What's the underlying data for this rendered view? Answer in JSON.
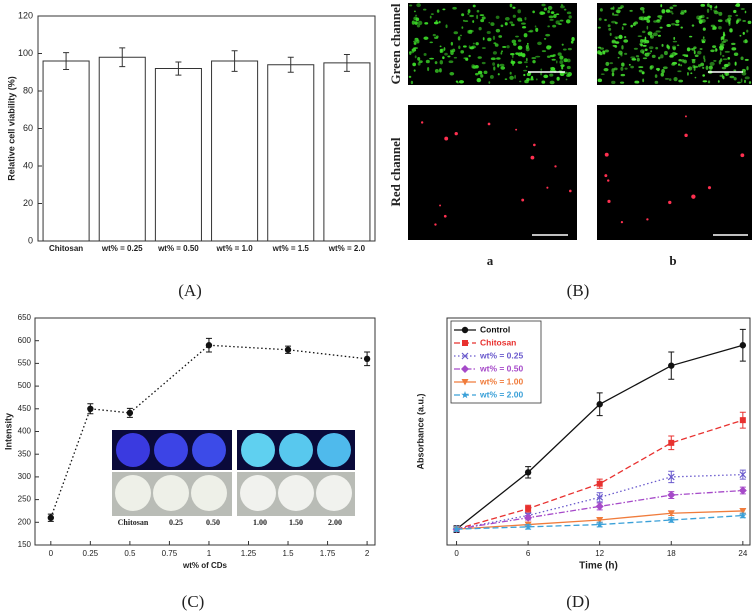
{
  "chart_data": [
    {
      "type": "bar",
      "panel_label": "(A)",
      "ylabel": "Relative cell viability (%)",
      "categories": [
        "Chitosan",
        "wt% = 0.25",
        "wt% = 0.50",
        "wt% = 1.0",
        "wt% = 1.5",
        "wt% = 2.0"
      ],
      "values": [
        96,
        98,
        92,
        96,
        94,
        95
      ],
      "errors": [
        4.5,
        5,
        3.5,
        5.5,
        4,
        4.5
      ],
      "color": "#ffffff",
      "ylim": [
        0,
        120
      ],
      "yticks": [
        0,
        20,
        40,
        60,
        80,
        100,
        120
      ]
    },
    {
      "type": "image",
      "panel_label": "(B)",
      "row_labels": [
        "Green channel",
        "Red channel"
      ],
      "column_labels": [
        "a",
        "b"
      ]
    },
    {
      "type": "line",
      "panel_label": "(C)",
      "xlabel": "wt% of CDs",
      "ylabel": "Intensity",
      "x": [
        0,
        0.25,
        0.5,
        1,
        1.5,
        2
      ],
      "values": [
        210,
        450,
        441,
        590,
        580,
        560
      ],
      "errors": [
        8,
        11,
        10,
        15,
        8,
        15
      ],
      "color": "#111111",
      "line_style": "dotted",
      "marker": "circle",
      "xlim": [
        -0.1,
        2.05
      ],
      "xticks": [
        0,
        0.25,
        0.5,
        0.75,
        1,
        1.25,
        1.5,
        1.75,
        2
      ],
      "ylim": [
        150,
        650
      ],
      "yticks": [
        150,
        200,
        250,
        300,
        350,
        400,
        450,
        500,
        550,
        600,
        650
      ],
      "inset_labels": [
        "Chitosan",
        "0.25",
        "0.50",
        "1.00",
        "1.50",
        "2.00"
      ]
    },
    {
      "type": "line",
      "panel_label": "(D)",
      "xlabel": "Time (h)",
      "ylabel": "Absorbance (a.u.)",
      "x": [
        0,
        6,
        12,
        18,
        24
      ],
      "xlim": [
        -0.8,
        24.6
      ],
      "xticks": [
        0,
        6,
        12,
        18,
        24
      ],
      "ylim": [
        0,
        1
      ],
      "legend": "upper left",
      "series": [
        {
          "name": "Control",
          "color": "#111111",
          "line_style": "solid",
          "marker": "circle",
          "values": [
            0.07,
            0.32,
            0.62,
            0.79,
            0.88
          ],
          "errors": [
            0.015,
            0.025,
            0.05,
            0.06,
            0.07
          ]
        },
        {
          "name": "Chitosan",
          "color": "#e8312f",
          "line_style": "dashed",
          "marker": "square",
          "values": [
            0.07,
            0.16,
            0.27,
            0.45,
            0.55
          ],
          "errors": [
            0.01,
            0.015,
            0.02,
            0.03,
            0.035
          ]
        },
        {
          "name": "wt% = 0.25",
          "color": "#6a5acd",
          "line_style": "dotted",
          "marker": "x",
          "values": [
            0.07,
            0.13,
            0.21,
            0.3,
            0.31
          ],
          "errors": [
            0.01,
            0.01,
            0.02,
            0.025,
            0.02
          ]
        },
        {
          "name": "wt% = 0.50",
          "color": "#a64ac9",
          "line_style": "dashdot",
          "marker": "diamond",
          "values": [
            0.07,
            0.12,
            0.17,
            0.22,
            0.24
          ],
          "errors": [
            0.01,
            0.01,
            0.015,
            0.015,
            0.015
          ]
        },
        {
          "name": "wt% = 1.00",
          "color": "#f07c3c",
          "line_style": "solid",
          "marker": "triangle",
          "values": [
            0.07,
            0.09,
            0.11,
            0.14,
            0.15
          ],
          "errors": [
            0.01,
            0.01,
            0.01,
            0.01,
            0.01
          ]
        },
        {
          "name": "wt% = 2.00",
          "color": "#3aa0d8",
          "line_style": "dashed",
          "marker": "star",
          "values": [
            0.07,
            0.08,
            0.09,
            0.11,
            0.13
          ],
          "errors": [
            0.01,
            0.01,
            0.01,
            0.01,
            0.01
          ]
        }
      ]
    }
  ]
}
